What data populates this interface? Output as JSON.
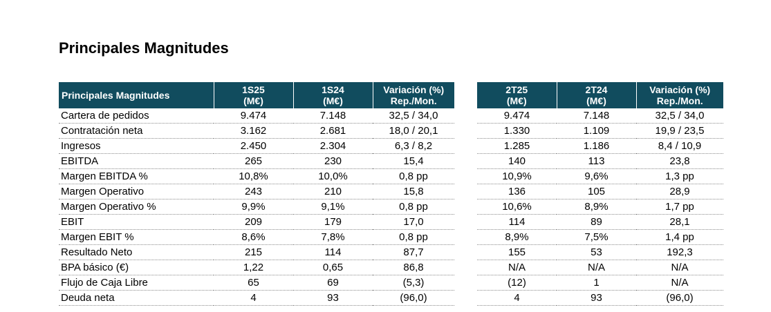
{
  "title": "Principales Magnitudes",
  "table_left": {
    "header": {
      "first": "Principales Magnitudes",
      "cols": [
        {
          "l1": "1S25",
          "l2": "(M€)"
        },
        {
          "l1": "1S24",
          "l2": "(M€)"
        },
        {
          "l1": "Variación (%)",
          "l2": "Rep./Mon."
        }
      ]
    },
    "rows": [
      [
        "Cartera de pedidos",
        "9.474",
        "7.148",
        "32,5 / 34,0"
      ],
      [
        "Contratación neta",
        "3.162",
        "2.681",
        "18,0 / 20,1"
      ],
      [
        "Ingresos",
        "2.450",
        "2.304",
        "6,3 / 8,2"
      ],
      [
        "EBITDA",
        "265",
        "230",
        "15,4"
      ],
      [
        "Margen EBITDA %",
        "10,8%",
        "10,0%",
        "0,8 pp"
      ],
      [
        "Margen Operativo",
        "243",
        "210",
        "15,8"
      ],
      [
        "Margen Operativo %",
        "9,9%",
        "9,1%",
        "0,8 pp"
      ],
      [
        "EBIT",
        "209",
        "179",
        "17,0"
      ],
      [
        "Margen EBIT %",
        "8,6%",
        "7,8%",
        "0,8 pp"
      ],
      [
        "Resultado Neto",
        "215",
        "114",
        "87,7"
      ],
      [
        "BPA básico (€)",
        "1,22",
        "0,65",
        "86,8"
      ],
      [
        "Flujo de Caja Libre",
        "65",
        "69",
        "(5,3)"
      ],
      [
        "Deuda neta",
        "4",
        "93",
        "(96,0)"
      ]
    ]
  },
  "table_right": {
    "header": {
      "cols": [
        {
          "l1": "2T25",
          "l2": "(M€)"
        },
        {
          "l1": "2T24",
          "l2": "(M€)"
        },
        {
          "l1": "Variación (%)",
          "l2": "Rep./Mon."
        }
      ]
    },
    "rows": [
      [
        "9.474",
        "7.148",
        "32,5 / 34,0"
      ],
      [
        "1.330",
        "1.109",
        "19,9 / 23,5"
      ],
      [
        "1.285",
        "1.186",
        "8,4 / 10,9"
      ],
      [
        "140",
        "113",
        "23,8"
      ],
      [
        "10,9%",
        "9,6%",
        "1,3 pp"
      ],
      [
        "136",
        "105",
        "28,9"
      ],
      [
        "10,6%",
        "8,9%",
        "1,7 pp"
      ],
      [
        "114",
        "89",
        "28,1"
      ],
      [
        "8,9%",
        "7,5%",
        "1,4 pp"
      ],
      [
        "155",
        "53",
        "192,3"
      ],
      [
        "N/A",
        "N/A",
        "N/A"
      ],
      [
        "(12)",
        "1",
        "N/A"
      ],
      [
        "4",
        "93",
        "(96,0)"
      ]
    ]
  }
}
